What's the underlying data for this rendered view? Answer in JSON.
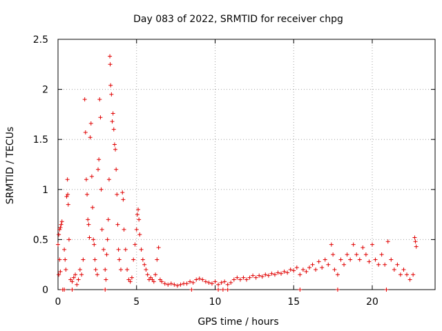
{
  "chart_data": {
    "type": "scatter",
    "title": "Day 083 of 2022, SRMTID for receiver chpg",
    "xlabel": "GPS time / hours",
    "ylabel": "SRMTID / TECUs",
    "xlim": [
      0,
      24
    ],
    "ylim": [
      0,
      2.5
    ],
    "xticks": [
      0,
      5,
      10,
      15,
      20
    ],
    "xtick_labels": [
      "0",
      "5",
      "10",
      "15",
      "20"
    ],
    "yticks": [
      0,
      0.5,
      1,
      1.5,
      2,
      2.5
    ],
    "ytick_labels": [
      "0",
      "0.5",
      "1",
      "1.5",
      "2",
      "2.5"
    ],
    "grid": true,
    "marker": "+",
    "color": "#e00000",
    "series": [
      {
        "name": "chpg",
        "points": [
          [
            0.0,
            0.45
          ],
          [
            0.05,
            0.55
          ],
          [
            0.1,
            0.6
          ],
          [
            0.15,
            0.62
          ],
          [
            0.2,
            0.65
          ],
          [
            0.25,
            0.68
          ],
          [
            0.1,
            0.3
          ],
          [
            0.05,
            0.15
          ],
          [
            0.15,
            0.18
          ],
          [
            0.3,
            0.0
          ],
          [
            0.4,
            0.4
          ],
          [
            0.45,
            0.3
          ],
          [
            0.5,
            0.2
          ],
          [
            0.55,
            0.93
          ],
          [
            0.6,
            1.1
          ],
          [
            0.62,
            0.95
          ],
          [
            0.65,
            0.85
          ],
          [
            0.7,
            0.5
          ],
          [
            0.8,
            0.1
          ],
          [
            0.9,
            0.08
          ],
          [
            1.0,
            0.12
          ],
          [
            1.1,
            0.15
          ],
          [
            1.2,
            0.05
          ],
          [
            1.3,
            0.1
          ],
          [
            1.4,
            0.2
          ],
          [
            1.5,
            0.15
          ],
          [
            1.6,
            0.3
          ],
          [
            1.7,
            1.9
          ],
          [
            1.75,
            1.57
          ],
          [
            1.8,
            1.1
          ],
          [
            1.85,
            0.95
          ],
          [
            1.9,
            0.7
          ],
          [
            1.95,
            0.65
          ],
          [
            2.0,
            0.52
          ],
          [
            2.05,
            1.52
          ],
          [
            2.1,
            1.66
          ],
          [
            2.15,
            1.13
          ],
          [
            2.2,
            0.82
          ],
          [
            2.25,
            0.5
          ],
          [
            2.3,
            0.45
          ],
          [
            2.35,
            0.3
          ],
          [
            2.4,
            0.2
          ],
          [
            2.5,
            0.15
          ],
          [
            2.55,
            1.2
          ],
          [
            2.6,
            1.3
          ],
          [
            2.65,
            1.9
          ],
          [
            2.7,
            1.72
          ],
          [
            2.75,
            1.0
          ],
          [
            2.8,
            0.6
          ],
          [
            2.9,
            0.4
          ],
          [
            3.0,
            0.2
          ],
          [
            3.05,
            0.1
          ],
          [
            3.1,
            0.35
          ],
          [
            3.15,
            0.5
          ],
          [
            3.2,
            0.7
          ],
          [
            3.25,
            1.1
          ],
          [
            3.3,
            2.33
          ],
          [
            3.32,
            2.25
          ],
          [
            3.35,
            2.04
          ],
          [
            3.4,
            1.95
          ],
          [
            3.45,
            1.68
          ],
          [
            3.5,
            1.76
          ],
          [
            3.55,
            1.6
          ],
          [
            3.6,
            1.45
          ],
          [
            3.65,
            1.4
          ],
          [
            3.7,
            1.2
          ],
          [
            3.75,
            0.95
          ],
          [
            3.8,
            0.65
          ],
          [
            3.85,
            0.4
          ],
          [
            3.9,
            0.3
          ],
          [
            4.0,
            0.2
          ],
          [
            4.1,
            0.97
          ],
          [
            4.15,
            0.9
          ],
          [
            4.2,
            0.6
          ],
          [
            4.3,
            0.4
          ],
          [
            4.4,
            0.2
          ],
          [
            4.5,
            0.1
          ],
          [
            4.6,
            0.08
          ],
          [
            4.7,
            0.12
          ],
          [
            4.8,
            0.3
          ],
          [
            4.9,
            0.45
          ],
          [
            5.0,
            0.6
          ],
          [
            5.05,
            0.75
          ],
          [
            5.1,
            0.8
          ],
          [
            5.15,
            0.7
          ],
          [
            5.2,
            0.55
          ],
          [
            5.3,
            0.4
          ],
          [
            5.4,
            0.3
          ],
          [
            5.5,
            0.25
          ],
          [
            5.6,
            0.2
          ],
          [
            5.7,
            0.15
          ],
          [
            5.8,
            0.1
          ],
          [
            5.9,
            0.12
          ],
          [
            6.0,
            0.1
          ],
          [
            6.1,
            0.08
          ],
          [
            6.2,
            0.15
          ],
          [
            6.3,
            0.3
          ],
          [
            6.4,
            0.42
          ],
          [
            6.5,
            0.1
          ],
          [
            6.6,
            0.08
          ],
          [
            6.8,
            0.06
          ],
          [
            7.0,
            0.05
          ],
          [
            7.2,
            0.06
          ],
          [
            7.4,
            0.05
          ],
          [
            7.6,
            0.04
          ],
          [
            7.8,
            0.05
          ],
          [
            8.0,
            0.06
          ],
          [
            8.2,
            0.06
          ],
          [
            8.4,
            0.08
          ],
          [
            8.6,
            0.07
          ],
          [
            8.8,
            0.1
          ],
          [
            9.0,
            0.11
          ],
          [
            9.2,
            0.1
          ],
          [
            9.4,
            0.08
          ],
          [
            9.6,
            0.07
          ],
          [
            9.8,
            0.06
          ],
          [
            10.0,
            0.08
          ],
          [
            10.2,
            0.05
          ],
          [
            10.4,
            0.07
          ],
          [
            10.5,
            0.0
          ],
          [
            10.6,
            0.08
          ],
          [
            10.8,
            0.05
          ],
          [
            11.0,
            0.07
          ],
          [
            11.2,
            0.1
          ],
          [
            11.4,
            0.12
          ],
          [
            11.6,
            0.1
          ],
          [
            11.8,
            0.12
          ],
          [
            12.0,
            0.1
          ],
          [
            12.2,
            0.12
          ],
          [
            12.4,
            0.14
          ],
          [
            12.6,
            0.12
          ],
          [
            12.8,
            0.14
          ],
          [
            13.0,
            0.13
          ],
          [
            13.2,
            0.15
          ],
          [
            13.4,
            0.14
          ],
          [
            13.6,
            0.16
          ],
          [
            13.8,
            0.15
          ],
          [
            14.0,
            0.17
          ],
          [
            14.2,
            0.16
          ],
          [
            14.4,
            0.18
          ],
          [
            14.6,
            0.17
          ],
          [
            14.8,
            0.2
          ],
          [
            15.0,
            0.19
          ],
          [
            15.2,
            0.22
          ],
          [
            15.4,
            0.15
          ],
          [
            15.6,
            0.2
          ],
          [
            15.8,
            0.18
          ],
          [
            16.0,
            0.22
          ],
          [
            16.2,
            0.25
          ],
          [
            16.4,
            0.2
          ],
          [
            16.6,
            0.28
          ],
          [
            16.8,
            0.22
          ],
          [
            17.0,
            0.3
          ],
          [
            17.2,
            0.25
          ],
          [
            17.4,
            0.45
          ],
          [
            17.5,
            0.35
          ],
          [
            17.6,
            0.2
          ],
          [
            17.8,
            0.15
          ],
          [
            18.0,
            0.3
          ],
          [
            18.2,
            0.25
          ],
          [
            18.4,
            0.35
          ],
          [
            18.6,
            0.3
          ],
          [
            18.8,
            0.45
          ],
          [
            19.0,
            0.35
          ],
          [
            19.2,
            0.3
          ],
          [
            19.4,
            0.42
          ],
          [
            19.6,
            0.35
          ],
          [
            19.8,
            0.28
          ],
          [
            20.0,
            0.45
          ],
          [
            20.2,
            0.3
          ],
          [
            20.4,
            0.25
          ],
          [
            20.6,
            0.35
          ],
          [
            20.8,
            0.25
          ],
          [
            21.0,
            0.48
          ],
          [
            21.2,
            0.3
          ],
          [
            21.4,
            0.2
          ],
          [
            21.6,
            0.25
          ],
          [
            21.8,
            0.15
          ],
          [
            22.0,
            0.2
          ],
          [
            22.2,
            0.15
          ],
          [
            22.4,
            0.1
          ],
          [
            22.6,
            0.15
          ],
          [
            22.7,
            0.52
          ],
          [
            22.75,
            0.48
          ],
          [
            22.8,
            0.43
          ],
          [
            0.4,
            0.0
          ],
          [
            0.9,
            0.0
          ],
          [
            3.0,
            0.0
          ],
          [
            8.5,
            0.0
          ],
          [
            10.2,
            0.0
          ],
          [
            10.8,
            0.0
          ],
          [
            15.4,
            0.0
          ],
          [
            17.8,
            0.0
          ],
          [
            20.9,
            0.0
          ]
        ]
      }
    ]
  }
}
